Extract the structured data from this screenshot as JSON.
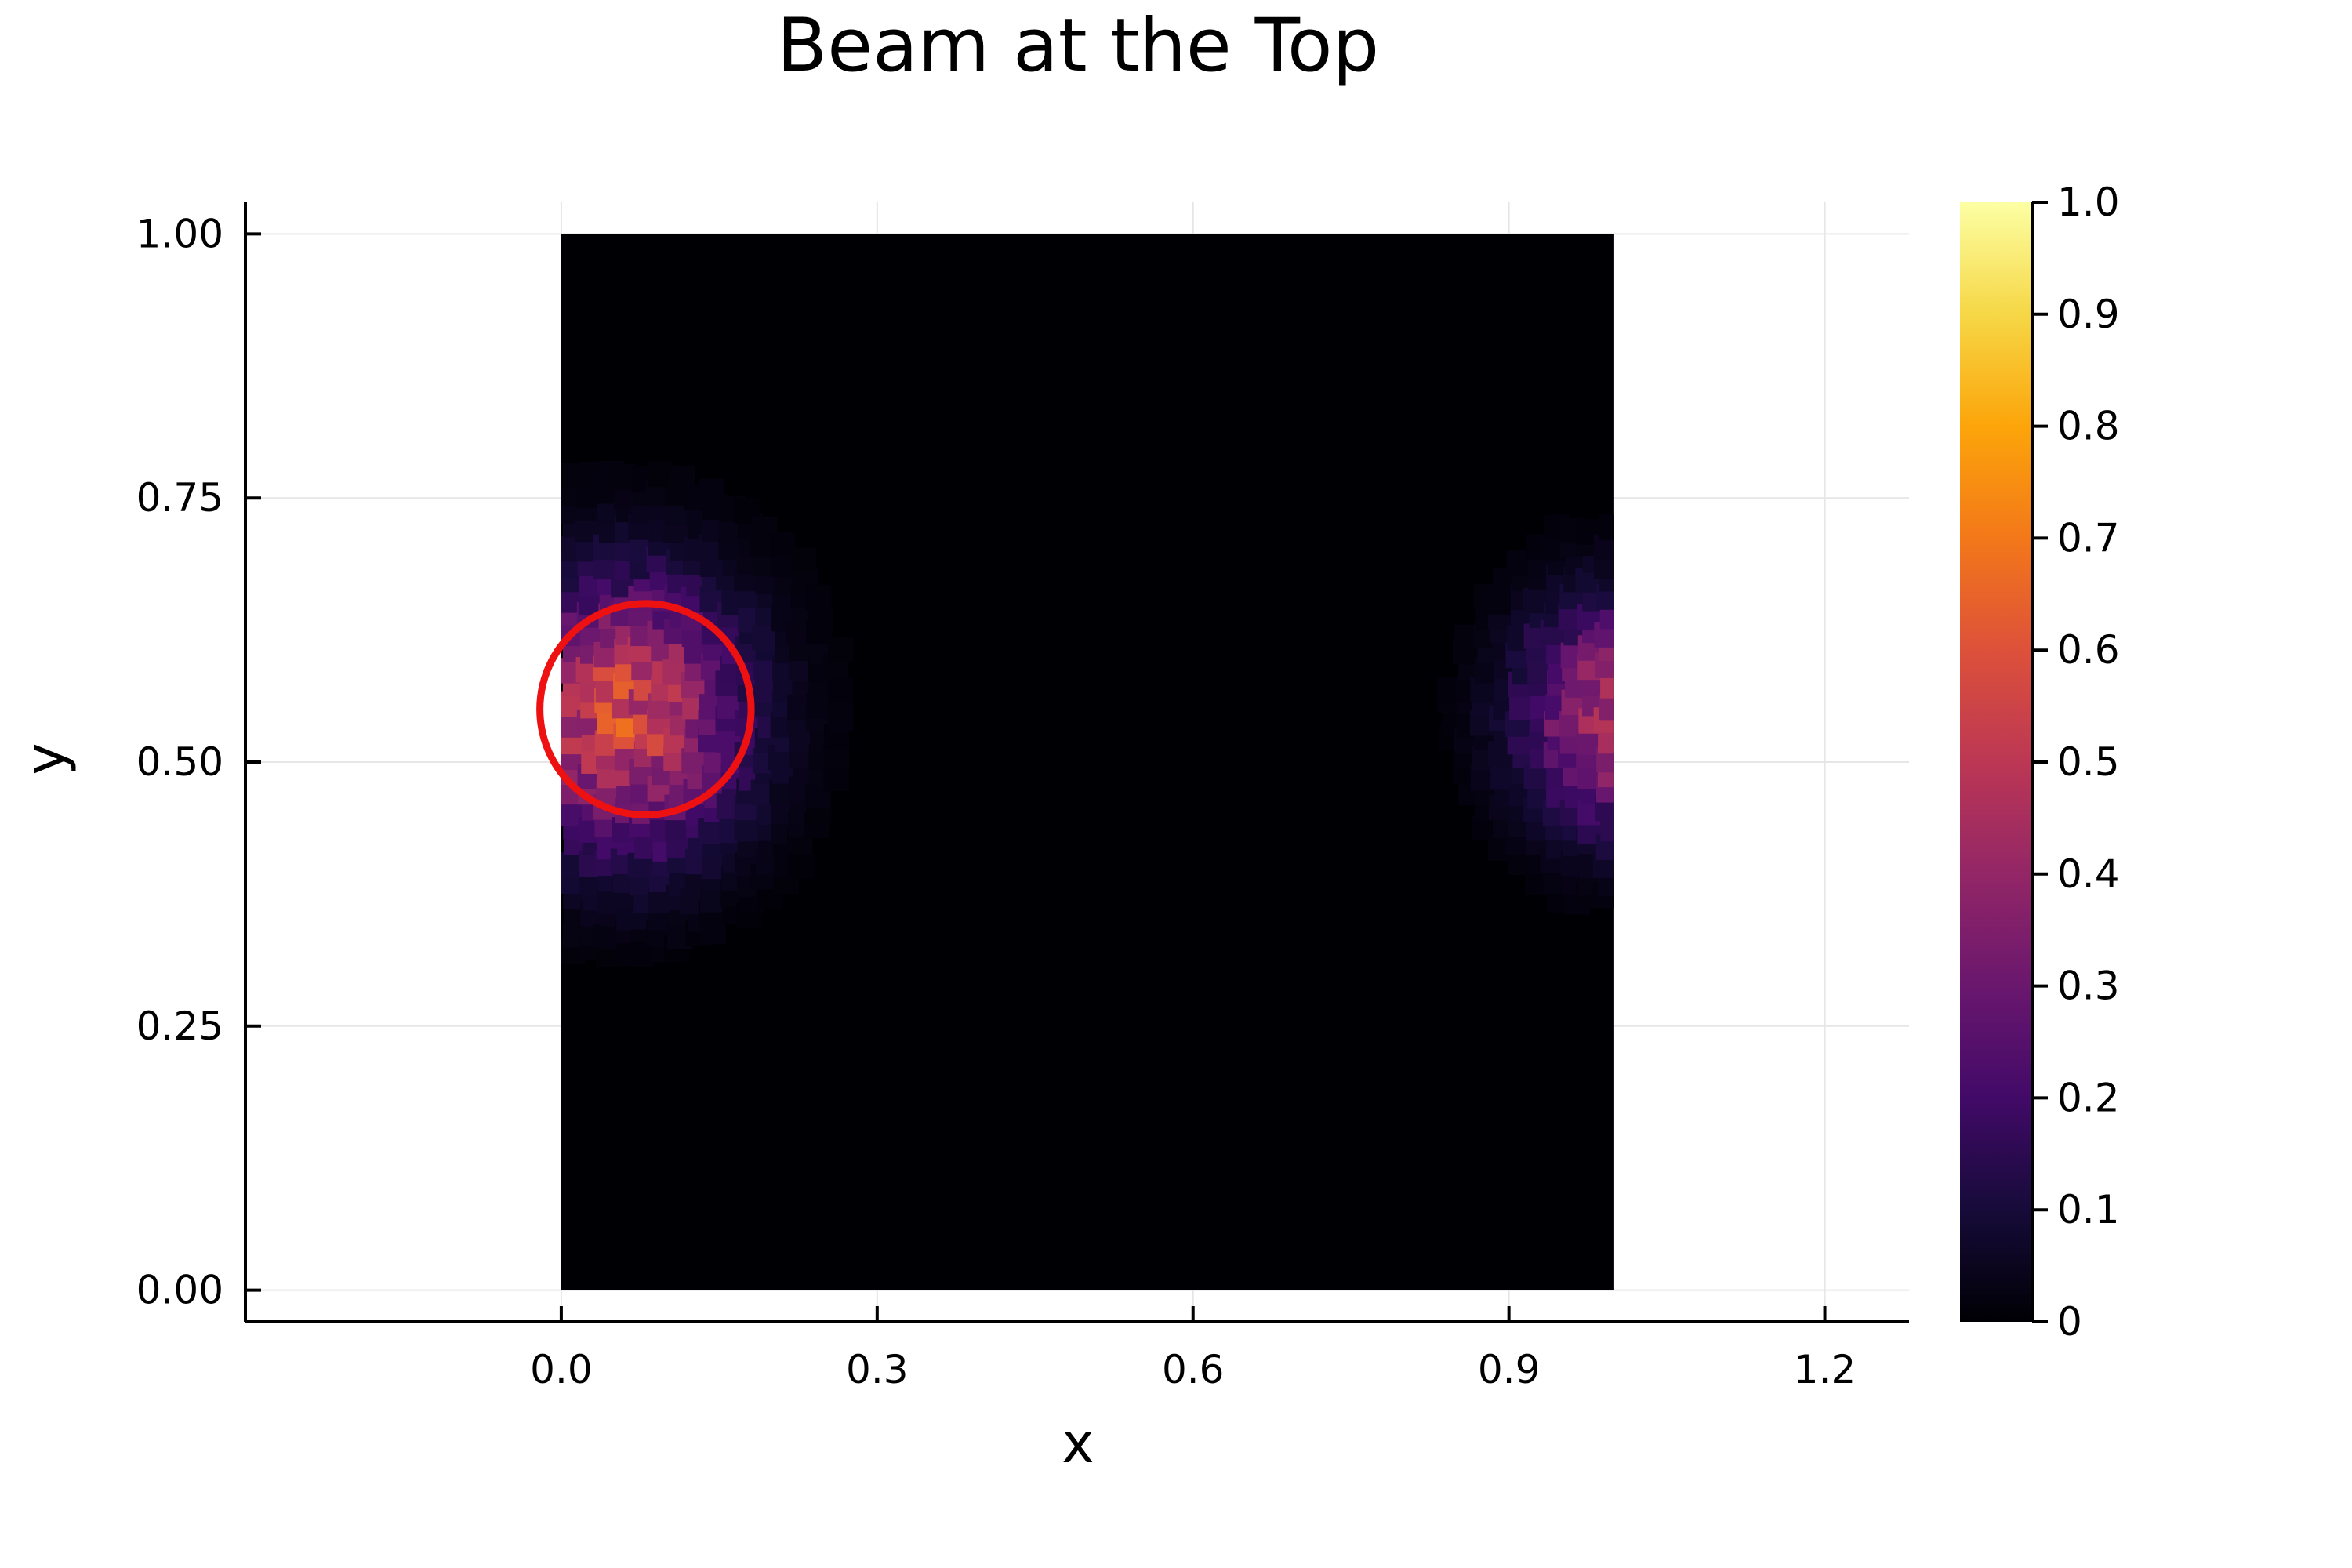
{
  "chart_data": {
    "type": "heatmap",
    "title": "Beam at the Top",
    "xlabel": "x",
    "ylabel": "y",
    "xlim": [
      -0.3,
      1.28
    ],
    "ylim": [
      -0.03,
      1.03
    ],
    "x_ticks": [
      0.0,
      0.3,
      0.6,
      0.9,
      1.2
    ],
    "x_tick_labels": [
      "0.0",
      "0.3",
      "0.6",
      "0.9",
      "1.2"
    ],
    "y_ticks": [
      0.0,
      0.25,
      0.5,
      0.75,
      1.0
    ],
    "y_tick_labels": [
      "0.00",
      "0.25",
      "0.50",
      "0.75",
      "1.00"
    ],
    "grid": true,
    "domain": {
      "x": [
        0,
        1
      ],
      "y": [
        0,
        1
      ]
    },
    "colorbar": {
      "colormap": "inferno",
      "range": [
        0,
        1
      ],
      "ticks": [
        0,
        0.1,
        0.2,
        0.3,
        0.4,
        0.5,
        0.6,
        0.7,
        0.8,
        0.9,
        1.0
      ],
      "tick_labels": [
        "0",
        "0.1",
        "0.2",
        "0.3",
        "0.4",
        "0.5",
        "0.6",
        "0.7",
        "0.8",
        "0.9",
        "1.0"
      ]
    },
    "field": {
      "background_value": 0.0,
      "blobs": [
        {
          "cx": 0.06,
          "cy": 0.55,
          "sx": 0.075,
          "sy": 0.085,
          "peak": 0.55
        },
        {
          "cx": 1.0,
          "cy": 0.55,
          "sx": 0.06,
          "sy": 0.07,
          "peak": 0.45
        }
      ]
    },
    "annotation": {
      "shape": "circle",
      "center": [
        0.08,
        0.55
      ],
      "radius": 0.1,
      "color": "#ee1111"
    }
  }
}
